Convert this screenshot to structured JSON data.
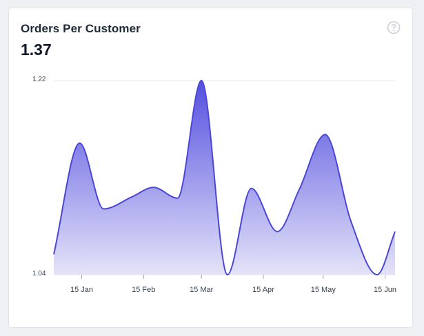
{
  "card": {
    "title": "Orders Per Customer",
    "metric_value": "1.37",
    "help_icon": "question-circle-icon"
  },
  "colors": {
    "line": "#4b47d6",
    "fill_top": "#5550e0",
    "fill_bottom": "#e4e3f8",
    "grid": "#e5e7eb",
    "icon": "#d1d5db"
  },
  "chart_data": {
    "type": "area",
    "title": "Orders Per Customer",
    "xlabel": "",
    "ylabel": "",
    "ylim": [
      1.04,
      1.22
    ],
    "yticks": [
      "1.22",
      "1.04"
    ],
    "xticks": [
      "15 Jan",
      "15 Feb",
      "15 Mar",
      "15 Apr",
      "15 May",
      "15 Jun"
    ],
    "grid": true,
    "series": [
      {
        "points": [
          [
            "2024-01-01",
            1.059
          ],
          [
            "2024-01-14",
            1.162
          ],
          [
            "2024-01-26",
            1.101
          ],
          [
            "2024-02-09",
            1.112
          ],
          [
            "2024-02-20",
            1.121
          ],
          [
            "2024-03-03",
            1.111
          ],
          [
            "2024-03-15",
            1.22
          ],
          [
            "2024-03-28",
            1.04
          ],
          [
            "2024-04-09",
            1.12
          ],
          [
            "2024-04-22",
            1.08
          ],
          [
            "2024-05-03",
            1.119
          ],
          [
            "2024-05-16",
            1.17
          ],
          [
            "2024-05-29",
            1.089
          ],
          [
            "2024-06-11",
            1.04
          ],
          [
            "2024-06-20",
            1.08
          ]
        ]
      }
    ]
  }
}
